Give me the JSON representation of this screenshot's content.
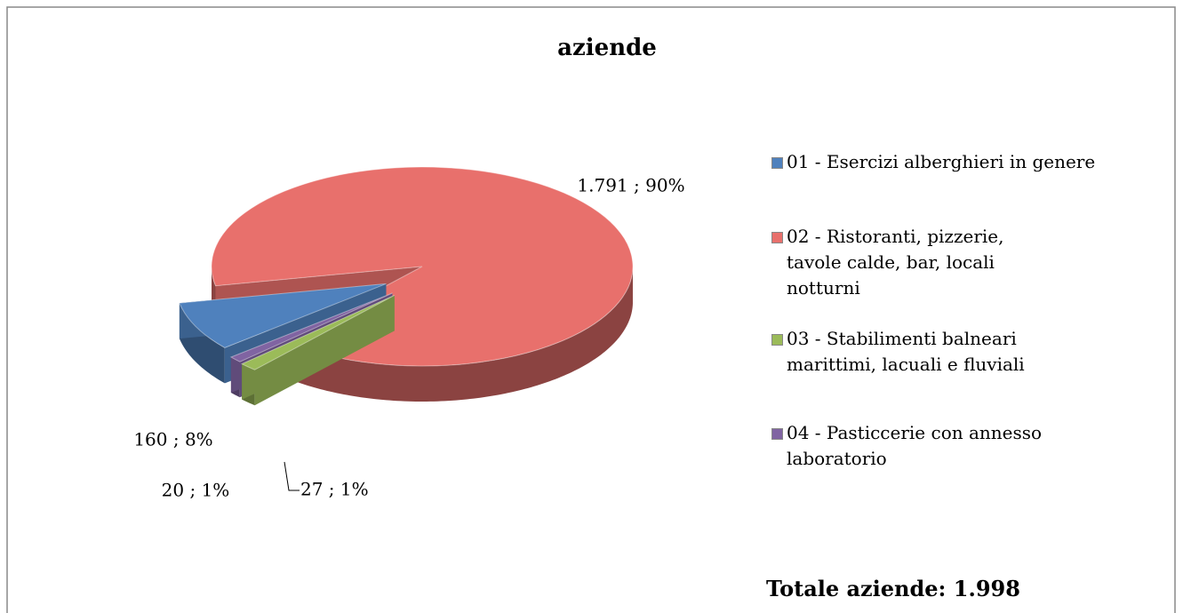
{
  "chart_data": {
    "type": "pie",
    "title": "aziende",
    "categories": [
      "01 - Esercizi alberghieri in genere",
      "02 - Ristoranti, pizzerie, tavole calde, bar, locali notturni",
      "03 - Stabilimenti balneari marittimi, lacuali e fluviali",
      "04 - Pasticcerie con annesso laboratorio"
    ],
    "values": [
      160,
      1791,
      27,
      20
    ],
    "value_labels": [
      "160 ; 8%",
      "1.791 ; 90%",
      "27 ; 1%",
      "20 ; 1%"
    ],
    "colors": [
      "#4f81bd",
      "#e8706c",
      "#9bbb59",
      "#8064a2"
    ],
    "annotation": "Totale aziende: 1.998"
  }
}
